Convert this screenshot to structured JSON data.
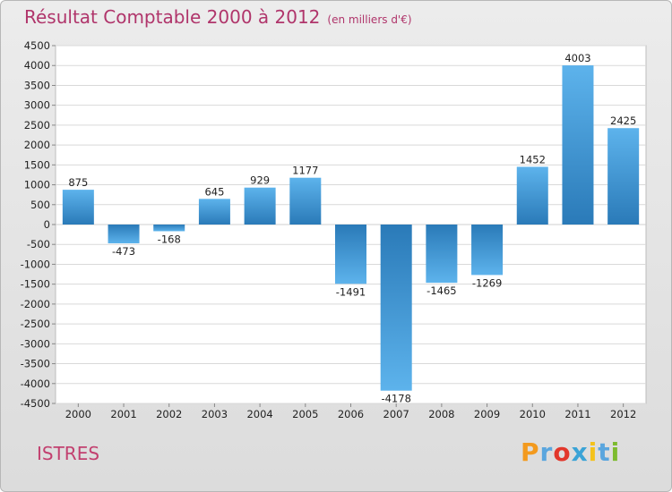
{
  "header": {
    "title": "Résultat Comptable 2000 à 2012",
    "subtitle": "(en milliers d'€)"
  },
  "footer": {
    "city": "ISTRES",
    "logo_text": "Proxiti"
  },
  "colors": {
    "title": "#b0356b",
    "bar_light": "#5db3ec",
    "bar_dark": "#2a7ab8",
    "plot_bg": "#ffffff",
    "grid": "#d9d9d9",
    "logo_letters": [
      "#f39a1e",
      "#5aa6de",
      "#e2372b",
      "#3aa3d6",
      "#f4c21b",
      "#5aa6de",
      "#7dbb2f"
    ]
  },
  "chart_data": {
    "type": "bar",
    "title": "Résultat Comptable 2000 à 2012",
    "subtitle": "(en milliers d'€)",
    "xlabel": "",
    "ylabel": "",
    "categories": [
      "2000",
      "2001",
      "2002",
      "2003",
      "2004",
      "2005",
      "2006",
      "2007",
      "2008",
      "2009",
      "2010",
      "2011",
      "2012"
    ],
    "values": [
      875,
      -473,
      -168,
      645,
      929,
      1177,
      -1491,
      -4178,
      -1465,
      -1269,
      1452,
      4003,
      2425
    ],
    "labels": [
      "875",
      "-473",
      "-168",
      "645",
      "929",
      "1177",
      "-1491",
      "-4178",
      "-1465",
      "-1269",
      "1452",
      "4003",
      "2425"
    ],
    "ylim": [
      -4500,
      4500
    ],
    "yticks": [
      4500,
      4000,
      3500,
      3000,
      2500,
      2000,
      1500,
      1000,
      500,
      0,
      -500,
      -1000,
      -1500,
      -2000,
      -2500,
      -3000,
      -3500,
      -4000,
      -4500
    ],
    "grid": true,
    "legend": "none"
  }
}
